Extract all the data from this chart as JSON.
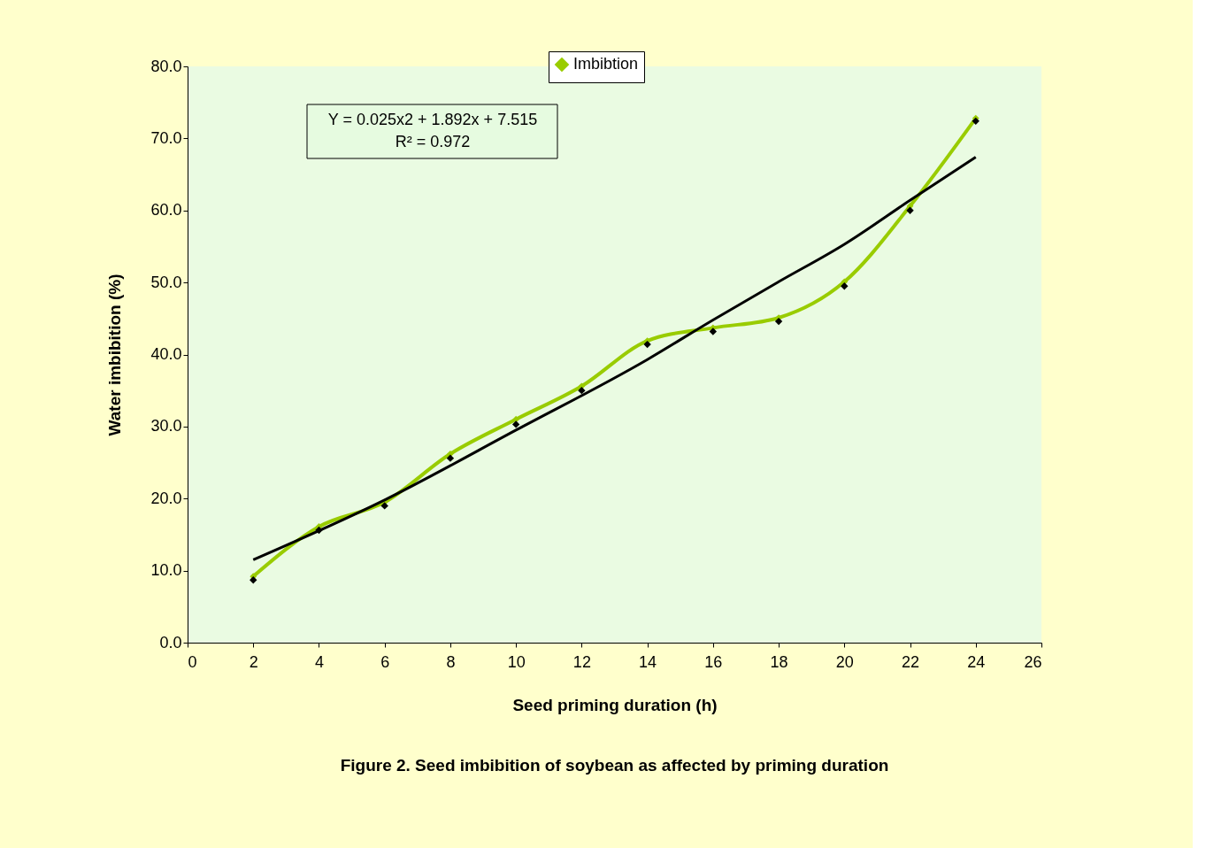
{
  "chart_data": {
    "type": "line",
    "title": "Figure 2. Seed imbibition of soybean as affected by priming duration",
    "xlabel": "Seed priming duration (h)",
    "ylabel": "Water imbibition (%)",
    "x": [
      2,
      4,
      6,
      8,
      10,
      12,
      14,
      16,
      18,
      20,
      22,
      24
    ],
    "series": [
      {
        "name": "Imbibtion",
        "color": "#99cc00",
        "marker": "diamond",
        "values": [
          9.2,
          16.1,
          19.5,
          26.2,
          31.0,
          35.6,
          41.9,
          43.7,
          45.1,
          50.1,
          60.6,
          72.8
        ]
      },
      {
        "type": "scatter",
        "color": "#000000",
        "marker": "diamond",
        "values": [
          8.7,
          15.6,
          19.0,
          25.6,
          30.3,
          35.0,
          41.4,
          43.2,
          44.6,
          49.5,
          60.0,
          72.4
        ]
      },
      {
        "color": "#000000",
        "marker": "none",
        "x": [
          2,
          6,
          10,
          14,
          16,
          18,
          20,
          22,
          24
        ],
        "values": [
          11.5,
          19.8,
          29.5,
          39.3,
          44.8,
          50.1,
          55.3,
          61.4,
          67.4
        ]
      }
    ],
    "annotations": [
      "Y = 0.025x2 + 1.892x + 7.515",
      "R² = 0.972"
    ],
    "xlim": [
      0,
      26
    ],
    "xticks": [
      0,
      2,
      4,
      6,
      8,
      10,
      12,
      14,
      16,
      18,
      20,
      22,
      24,
      26
    ],
    "ylim": [
      0,
      80
    ],
    "yticks": [
      {
        "value": 0,
        "label": "0.0"
      },
      {
        "value": 10,
        "label": "10.0"
      },
      {
        "value": 20,
        "label": "20.0"
      },
      {
        "value": 30,
        "label": "30.0"
      },
      {
        "value": 40,
        "label": "40.0"
      },
      {
        "value": 50,
        "label": "50.0"
      },
      {
        "value": 60,
        "label": "60.0"
      },
      {
        "value": 70,
        "label": "70.0"
      },
      {
        "value": 80,
        "label": "80.0"
      }
    ],
    "grid": false,
    "legend": "top"
  }
}
